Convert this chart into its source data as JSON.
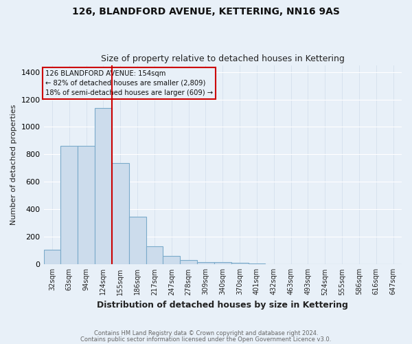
{
  "title": "126, BLANDFORD AVENUE, KETTERING, NN16 9AS",
  "subtitle": "Size of property relative to detached houses in Kettering",
  "xlabel": "Distribution of detached houses by size in Kettering",
  "ylabel": "Number of detached properties",
  "bar_color": "#ccdcec",
  "bar_edge_color": "#7aaaca",
  "background_color": "#e8f0f8",
  "grid_color": "#d0dcea",
  "categories": [
    "32sqm",
    "63sqm",
    "94sqm",
    "124sqm",
    "155sqm",
    "186sqm",
    "217sqm",
    "247sqm",
    "278sqm",
    "309sqm",
    "340sqm",
    "370sqm",
    "401sqm",
    "432sqm",
    "463sqm",
    "493sqm",
    "524sqm",
    "555sqm",
    "586sqm",
    "616sqm",
    "647sqm"
  ],
  "values": [
    105,
    860,
    860,
    1140,
    735,
    345,
    130,
    60,
    30,
    15,
    15,
    10,
    5,
    0,
    0,
    0,
    0,
    0,
    0,
    0,
    0
  ],
  "annotation_title": "126 BLANDFORD AVENUE: 154sqm",
  "annotation_line1": "← 82% of detached houses are smaller (2,809)",
  "annotation_line2": "18% of semi-detached houses are larger (609) →",
  "ylim": [
    0,
    1450
  ],
  "yticks": [
    0,
    200,
    400,
    600,
    800,
    1000,
    1200,
    1400
  ],
  "footer1": "Contains HM Land Registry data © Crown copyright and database right 2024.",
  "footer2": "Contains public sector information licensed under the Open Government Licence v3.0."
}
